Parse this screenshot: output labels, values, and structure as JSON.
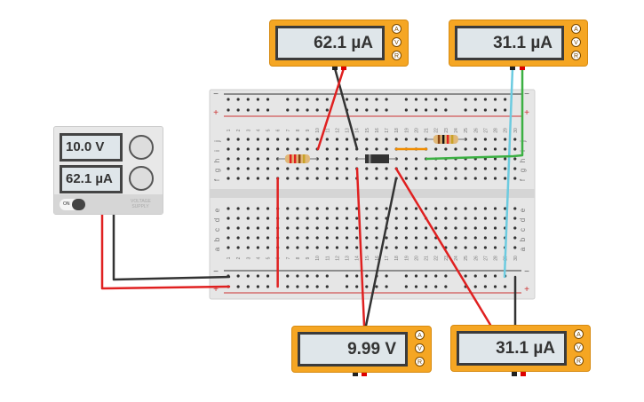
{
  "meters": [
    {
      "id": "ammeter-top-left",
      "reading": "62.1 µA",
      "buttons": [
        "A",
        "V",
        "R"
      ]
    },
    {
      "id": "ammeter-top-right",
      "reading": "31.1 µA",
      "buttons": [
        "A",
        "V",
        "R"
      ]
    },
    {
      "id": "voltmeter-bottom-left",
      "reading": "9.99 V",
      "buttons": [
        "A",
        "V",
        "R"
      ]
    },
    {
      "id": "ammeter-bottom-right",
      "reading": "31.1 µA",
      "buttons": [
        "A",
        "V",
        "R"
      ]
    }
  ],
  "power_supply": {
    "voltage": "10.0 V",
    "current": "62.1 µA",
    "on_label": "ON",
    "brand": "VOLTAGE SUPPLY"
  },
  "breadboard": {
    "columns": 30,
    "top_rows": [
      "j",
      "i",
      "h",
      "g",
      "f"
    ],
    "bottom_rows": [
      "e",
      "d",
      "c",
      "b",
      "a"
    ],
    "rail_minus": "−",
    "rail_plus": "+"
  },
  "colors": {
    "meter": "#f5a623",
    "wire_red": "#e02020",
    "wire_black": "#333333",
    "wire_cyan": "#6ccbe0",
    "wire_green": "#3cb043",
    "wire_orange": "#f08c00"
  }
}
